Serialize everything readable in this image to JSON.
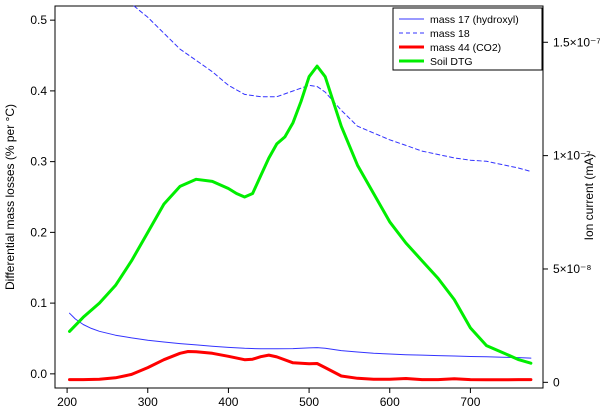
{
  "chart_data": {
    "type": "line",
    "xlabel": "",
    "ylabel": "Differential mass losses (% per °C)",
    "y2label": "Ion current (mA)",
    "xlim": [
      185,
      790
    ],
    "ylim": [
      -0.02,
      0.52
    ],
    "y2lim": [
      -2.5e-09,
      1.66e-07
    ],
    "x_ticks": [
      200,
      300,
      400,
      500,
      600,
      700
    ],
    "y_ticks": [
      0.0,
      0.1,
      0.2,
      0.3,
      0.4,
      0.5
    ],
    "y_tick_labels": [
      "0.0",
      "0.1",
      "0.2",
      "0.3",
      "0.4",
      "0.5"
    ],
    "y2_ticks": [
      0,
      5e-08,
      1e-07,
      1.5e-07
    ],
    "y2_tick_labels": [
      "0",
      "5×10⁻⁸",
      "1×10⁻⁷",
      "1.5×10⁻⁷"
    ],
    "grid": false,
    "legend_position": "top-right",
    "series": [
      {
        "name": "mass 17 (hydroxyl)",
        "axis": "right",
        "color": "#3333ff",
        "style": "solid",
        "width": 1,
        "x": [
          203,
          210,
          220,
          230,
          240,
          260,
          280,
          300,
          320,
          340,
          360,
          380,
          400,
          420,
          440,
          460,
          480,
          500,
          510,
          520,
          540,
          560,
          580,
          600,
          620,
          640,
          660,
          680,
          700,
          720,
          740,
          760,
          775
        ],
        "y": [
          3.05e-08,
          2.8e-08,
          2.55e-08,
          2.38e-08,
          2.25e-08,
          2.08e-08,
          1.96e-08,
          1.86e-08,
          1.78e-08,
          1.71e-08,
          1.65e-08,
          1.59e-08,
          1.54e-08,
          1.5e-08,
          1.48e-08,
          1.48e-08,
          1.49e-08,
          1.52e-08,
          1.53e-08,
          1.5e-08,
          1.4e-08,
          1.34e-08,
          1.28e-08,
          1.25e-08,
          1.22e-08,
          1.2e-08,
          1.18e-08,
          1.16e-08,
          1.14e-08,
          1.13e-08,
          1.11e-08,
          1.09e-08,
          1.07e-08
        ]
      },
      {
        "name": "mass 18",
        "axis": "right",
        "color": "#3333ff",
        "style": "dashed",
        "width": 1,
        "x": [
          283,
          300,
          320,
          340,
          360,
          380,
          400,
          420,
          440,
          460,
          480,
          500,
          510,
          520,
          540,
          560,
          580,
          600,
          620,
          640,
          660,
          680,
          700,
          720,
          740,
          760,
          775
        ],
        "y": [
          1.66e-07,
          1.61e-07,
          1.54e-07,
          1.47e-07,
          1.42e-07,
          1.37e-07,
          1.31e-07,
          1.27e-07,
          1.26e-07,
          1.26e-07,
          1.285e-07,
          1.31e-07,
          1.305e-07,
          1.28e-07,
          1.2e-07,
          1.13e-07,
          1.1e-07,
          1.07e-07,
          1.045e-07,
          1.02e-07,
          1.005e-07,
          9.9e-08,
          9.8e-08,
          9.75e-08,
          9.6e-08,
          9.45e-08,
          9.3e-08
        ]
      },
      {
        "name": "mass 44 (CO2)",
        "axis": "right",
        "color": "#ff0000",
        "style": "solid",
        "width": 3,
        "x": [
          203,
          220,
          240,
          260,
          280,
          300,
          320,
          340,
          350,
          360,
          380,
          400,
          420,
          430,
          440,
          450,
          460,
          480,
          500,
          510,
          520,
          540,
          560,
          580,
          600,
          620,
          640,
          660,
          680,
          700,
          720,
          740,
          760,
          775
        ],
        "y": [
          1.2e-09,
          1.2e-09,
          1.4e-09,
          2e-09,
          3.5e-09,
          6.5e-09,
          1e-08,
          1.28e-08,
          1.36e-08,
          1.35e-08,
          1.28e-08,
          1.15e-08,
          1e-08,
          1.02e-08,
          1.13e-08,
          1.2e-08,
          1.12e-08,
          8.6e-09,
          8.2e-09,
          8.3e-09,
          6.5e-09,
          2.8e-09,
          1.8e-09,
          1.4e-09,
          1.4e-09,
          1.7e-09,
          1.2e-09,
          1.2e-09,
          1.6e-09,
          1.2e-09,
          1.1e-09,
          1.1e-09,
          1.2e-09,
          1.2e-09
        ]
      },
      {
        "name": "Soil DTG",
        "axis": "left",
        "color": "#00ee00",
        "style": "solid",
        "width": 3,
        "x": [
          203,
          220,
          240,
          260,
          280,
          300,
          320,
          340,
          360,
          380,
          400,
          410,
          420,
          430,
          440,
          450,
          460,
          470,
          480,
          490,
          500,
          510,
          520,
          540,
          560,
          580,
          600,
          620,
          640,
          660,
          680,
          700,
          720,
          740,
          760,
          775
        ],
        "y": [
          0.06,
          0.08,
          0.1,
          0.125,
          0.16,
          0.2,
          0.24,
          0.265,
          0.275,
          0.272,
          0.262,
          0.255,
          0.25,
          0.255,
          0.28,
          0.305,
          0.325,
          0.335,
          0.355,
          0.385,
          0.42,
          0.435,
          0.42,
          0.35,
          0.295,
          0.255,
          0.215,
          0.185,
          0.16,
          0.135,
          0.105,
          0.065,
          0.04,
          0.03,
          0.02,
          0.015
        ]
      }
    ]
  }
}
